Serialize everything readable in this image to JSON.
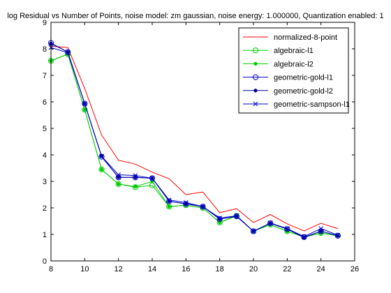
{
  "chart_data": {
    "type": "line",
    "title": "log Residual vs Number of Points, noise model: zm gaussian, noise energy: 1.000000, Quantization enabled: 1",
    "xlabel": "",
    "ylabel": "",
    "xlim": [
      8,
      26
    ],
    "ylim": [
      0,
      9
    ],
    "xticks": [
      8,
      10,
      12,
      14,
      16,
      18,
      20,
      22,
      24,
      26
    ],
    "yticks": [
      0,
      1,
      2,
      3,
      4,
      5,
      6,
      7,
      8,
      9
    ],
    "grid": false,
    "legend_position": "top-right",
    "x": [
      8,
      9,
      10,
      11,
      12,
      13,
      14,
      15,
      16,
      17,
      18,
      19,
      20,
      21,
      22,
      23,
      24,
      25
    ],
    "series": [
      {
        "name": "normalized-8-point",
        "color": "#ff0000",
        "marker": "none",
        "values": [
          8.1,
          8.05,
          6.5,
          4.75,
          3.8,
          3.65,
          3.35,
          3.1,
          2.5,
          2.6,
          1.82,
          1.97,
          1.45,
          1.75,
          1.4,
          1.13,
          1.42,
          1.22
        ]
      },
      {
        "name": "algebraic-l1",
        "color": "#00cc00",
        "marker": "circle",
        "values": [
          7.55,
          7.8,
          5.7,
          3.45,
          2.9,
          2.78,
          2.85,
          2.05,
          2.1,
          2.0,
          1.45,
          1.7,
          1.12,
          1.37,
          1.12,
          0.9,
          1.05,
          0.95
        ]
      },
      {
        "name": "algebraic-l2",
        "color": "#00cc00",
        "marker": "dot",
        "values": [
          7.55,
          7.8,
          5.7,
          3.45,
          2.9,
          2.8,
          3.0,
          2.05,
          2.1,
          2.0,
          1.45,
          1.7,
          1.12,
          1.37,
          1.12,
          0.9,
          1.05,
          0.95
        ]
      },
      {
        "name": "geometric-gold-l1",
        "color": "#0000cc",
        "marker": "circle",
        "values": [
          8.22,
          7.88,
          5.93,
          3.93,
          3.15,
          3.15,
          3.12,
          2.25,
          2.15,
          2.05,
          1.58,
          1.68,
          1.12,
          1.42,
          1.2,
          0.9,
          1.12,
          0.95
        ]
      },
      {
        "name": "geometric-gold-l2",
        "color": "#000099",
        "marker": "dot",
        "values": [
          8.2,
          7.88,
          5.93,
          3.95,
          3.15,
          3.15,
          3.12,
          2.25,
          2.15,
          2.05,
          1.58,
          1.68,
          1.12,
          1.42,
          1.2,
          0.88,
          1.12,
          0.95
        ]
      },
      {
        "name": "geometric-sampson-l1",
        "color": "#0000cc",
        "marker": "x",
        "values": [
          8.05,
          7.85,
          5.93,
          3.95,
          3.25,
          3.22,
          3.12,
          2.3,
          2.2,
          2.05,
          1.62,
          1.7,
          1.12,
          1.43,
          1.22,
          0.92,
          1.22,
          0.97
        ]
      }
    ]
  }
}
